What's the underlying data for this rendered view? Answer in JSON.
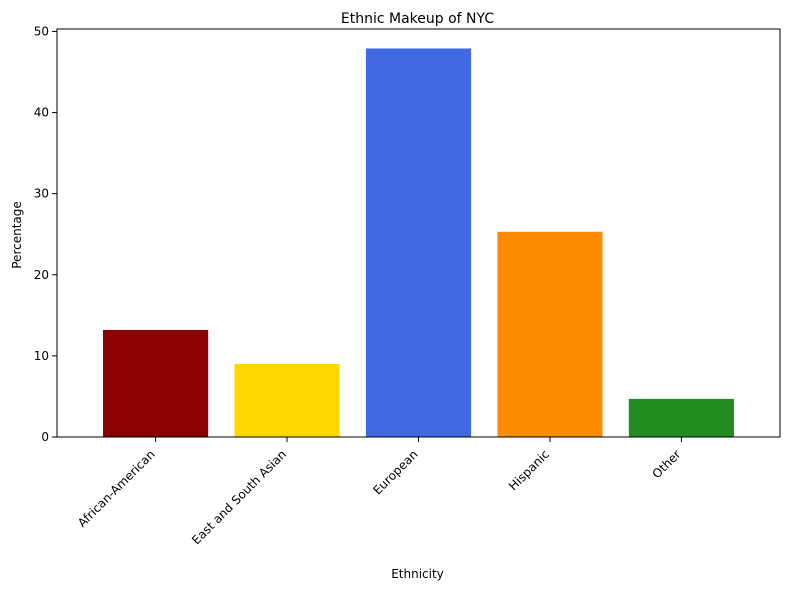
{
  "chart_data": {
    "type": "bar",
    "title": "Ethnic Makeup of NYC",
    "xlabel": "Ethnicity",
    "ylabel": "Percentage",
    "categories": [
      "African-American",
      "East and South Asian",
      "European",
      "Hispanic",
      "Other"
    ],
    "values": [
      13.2,
      9.0,
      47.9,
      25.3,
      4.7
    ],
    "ylim": [
      0,
      50.3
    ],
    "yticks": [
      0,
      10,
      20,
      30,
      40,
      50
    ],
    "colors": [
      "#8b0000",
      "#ffd700",
      "#4169e1",
      "#ff8c00",
      "#228b22"
    ],
    "grid": false,
    "legend": "none",
    "xtick_rotation": 45
  }
}
